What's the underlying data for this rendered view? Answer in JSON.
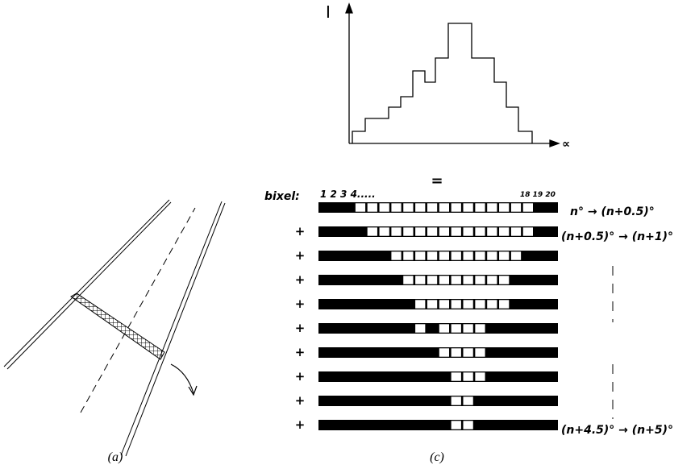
{
  "histogram": {
    "y_label": "I",
    "x_label": "∝"
  },
  "equals": "=",
  "bixel": {
    "label": "bixel:",
    "first_numbers": "1 2 3 4.....",
    "last_numbers": "18 19 20"
  },
  "plus": [
    "+",
    "+",
    "+",
    "+",
    "+",
    "+",
    "+",
    "+",
    "+"
  ],
  "angles": {
    "first": "n° → (n+0.5)°",
    "second": "(n+0.5)° → (n+1)°",
    "last": "(n+4.5)° → (n+5)°"
  },
  "captions": {
    "a": "(a)",
    "c": "(c)"
  }
}
